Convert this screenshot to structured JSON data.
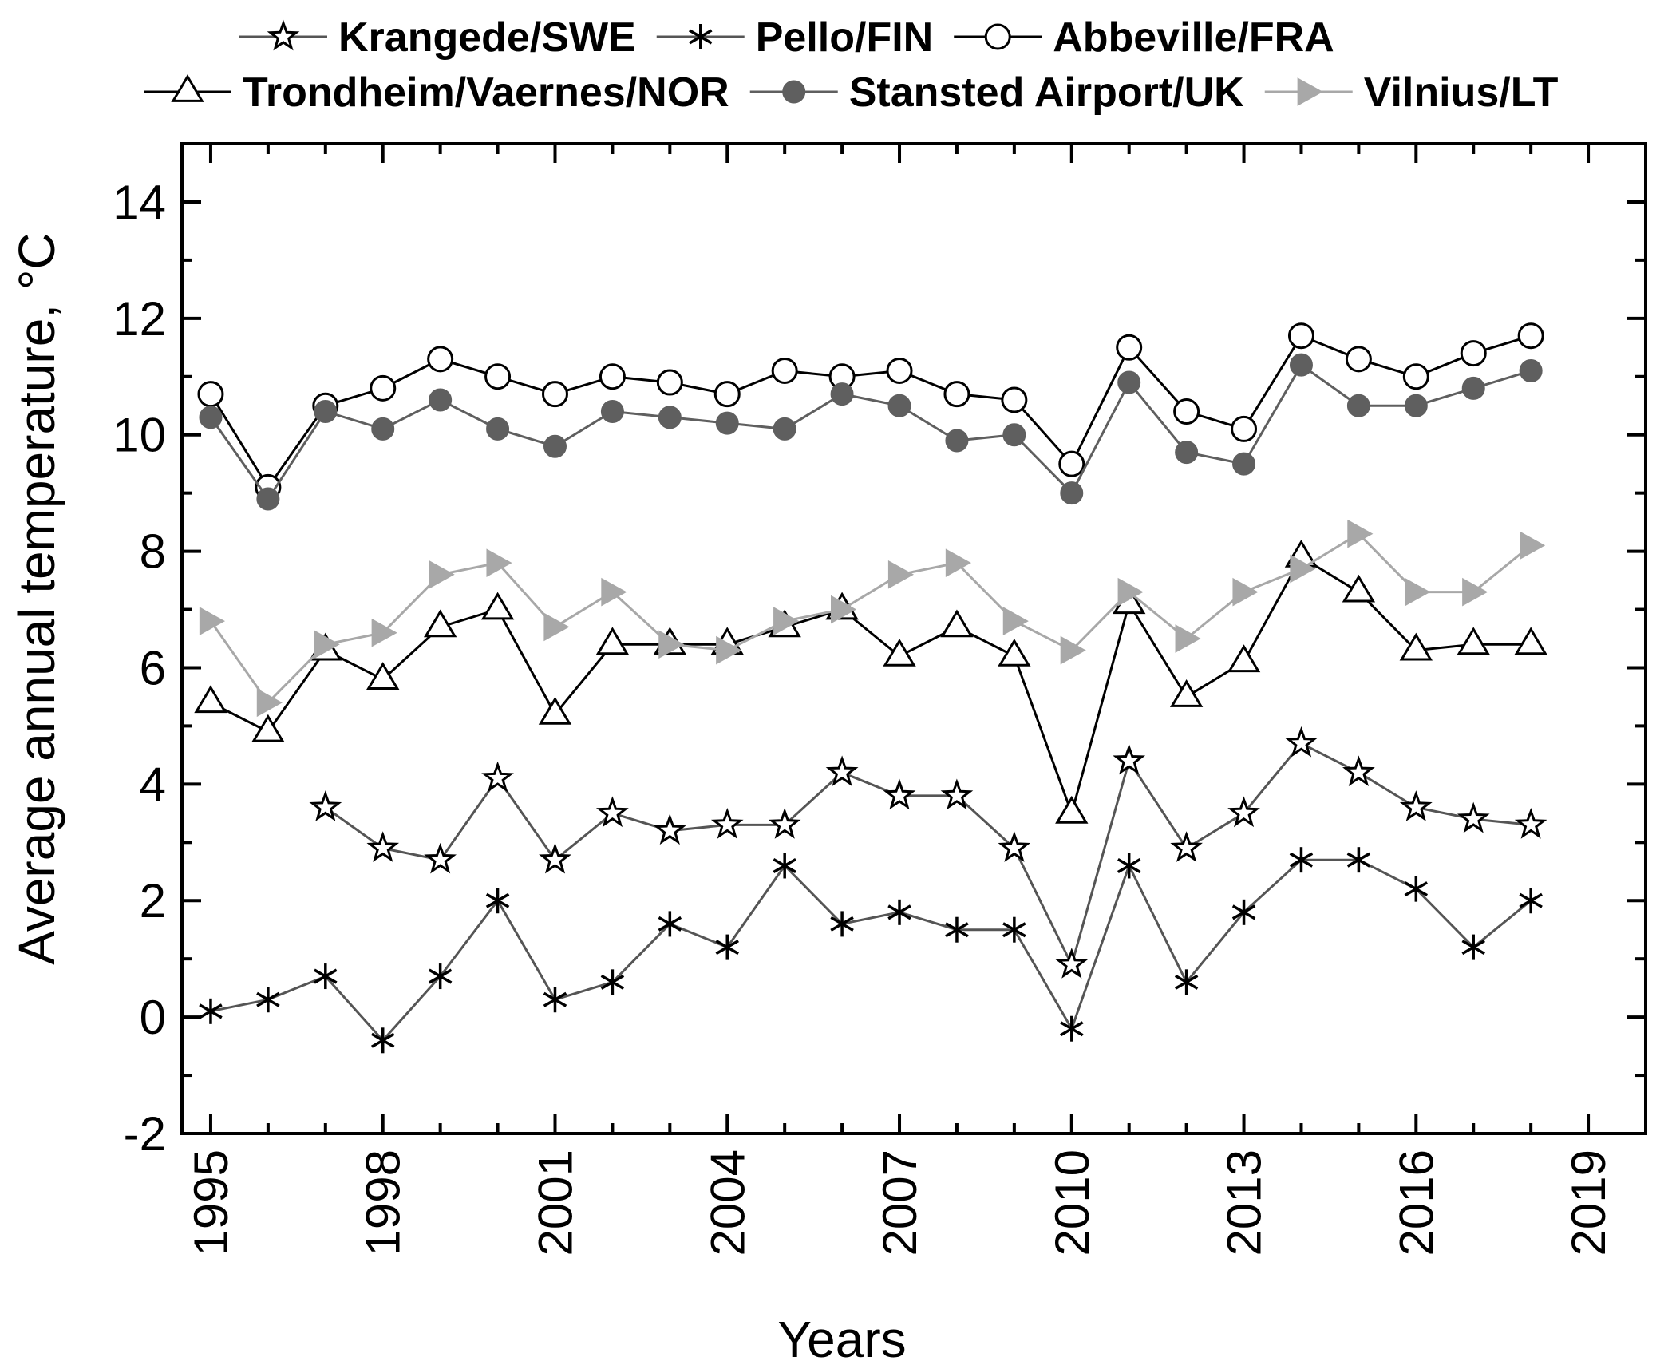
{
  "chart_data": {
    "type": "line",
    "title": "",
    "xlabel": "Years",
    "ylabel": "Average annual temperature, °C",
    "xlim": [
      1994.5,
      2020
    ],
    "ylim": [
      -2,
      15
    ],
    "xticks": [
      "1995",
      "1998",
      "2001",
      "2004",
      "2007",
      "2010",
      "2013",
      "2016",
      "2019"
    ],
    "yticks": [
      "-2",
      "0",
      "2",
      "4",
      "6",
      "8",
      "10",
      "12",
      "14"
    ],
    "legend_position": "top",
    "series": [
      {
        "name": "Krangede/SWE",
        "marker": "star",
        "color": "#555555",
        "x": [
          1997,
          1998,
          1999,
          2000,
          2001,
          2002,
          2003,
          2004,
          2005,
          2006,
          2007,
          2008,
          2009,
          2010,
          2011,
          2012,
          2013,
          2014,
          2015,
          2016,
          2017,
          2018
        ],
        "values": [
          3.6,
          2.9,
          2.7,
          4.1,
          2.7,
          3.5,
          3.2,
          3.3,
          3.3,
          4.2,
          3.8,
          3.8,
          2.9,
          0.9,
          4.4,
          2.9,
          3.5,
          4.7,
          4.2,
          3.6,
          3.4,
          3.3
        ]
      },
      {
        "name": "Pello/FIN",
        "marker": "asterisk",
        "color": "#555555",
        "x": [
          1995,
          1996,
          1997,
          1998,
          1999,
          2000,
          2001,
          2002,
          2003,
          2004,
          2005,
          2006,
          2007,
          2008,
          2009,
          2010,
          2011,
          2012,
          2013,
          2014,
          2015,
          2016,
          2017,
          2018
        ],
        "values": [
          0.1,
          0.3,
          0.7,
          -0.4,
          0.7,
          2.0,
          0.3,
          0.6,
          1.6,
          1.2,
          2.6,
          1.6,
          1.8,
          1.5,
          1.5,
          -0.2,
          2.6,
          0.6,
          1.8,
          2.7,
          2.7,
          2.2,
          1.2,
          2.0
        ]
      },
      {
        "name": "Abbeville/FRA",
        "marker": "open-circle",
        "color": "#000000",
        "x": [
          1995,
          1996,
          1997,
          1998,
          1999,
          2000,
          2001,
          2002,
          2003,
          2004,
          2005,
          2006,
          2007,
          2008,
          2009,
          2010,
          2011,
          2012,
          2013,
          2014,
          2015,
          2016,
          2017,
          2018
        ],
        "values": [
          10.7,
          9.1,
          10.5,
          10.8,
          11.3,
          11.0,
          10.7,
          11.0,
          10.9,
          10.7,
          11.1,
          11.0,
          11.1,
          10.7,
          10.6,
          9.5,
          11.5,
          10.4,
          10.1,
          11.7,
          11.3,
          11.0,
          11.4,
          11.7
        ]
      },
      {
        "name": "Trondheim/Vaernes/NOR",
        "marker": "open-triangle",
        "color": "#000000",
        "x": [
          1995,
          1996,
          1997,
          1998,
          1999,
          2000,
          2001,
          2002,
          2003,
          2004,
          2005,
          2006,
          2007,
          2008,
          2009,
          2010,
          2011,
          2012,
          2013,
          2014,
          2015,
          2016,
          2017,
          2018
        ],
        "values": [
          5.4,
          4.9,
          6.3,
          5.8,
          6.7,
          7.0,
          5.2,
          6.4,
          6.4,
          6.4,
          6.7,
          7.0,
          6.2,
          6.7,
          6.2,
          3.5,
          7.1,
          5.5,
          6.1,
          7.9,
          7.3,
          6.3,
          6.4,
          6.4
        ]
      },
      {
        "name": "Stansted Airport/UK",
        "marker": "filled-circle",
        "color": "#5f5f5f",
        "x": [
          1995,
          1996,
          1997,
          1998,
          1999,
          2000,
          2001,
          2002,
          2003,
          2004,
          2005,
          2006,
          2007,
          2008,
          2009,
          2010,
          2011,
          2012,
          2013,
          2014,
          2015,
          2016,
          2017,
          2018
        ],
        "values": [
          10.3,
          8.9,
          10.4,
          10.1,
          10.6,
          10.1,
          9.8,
          10.4,
          10.3,
          10.2,
          10.1,
          10.7,
          10.5,
          9.9,
          10.0,
          9.0,
          10.9,
          9.7,
          9.5,
          11.2,
          10.5,
          10.5,
          10.8,
          11.1
        ]
      },
      {
        "name": "Vilnius/LT",
        "marker": "filled-right-triangle",
        "color": "#a8a8a8",
        "x": [
          1995,
          1996,
          1997,
          1998,
          1999,
          2000,
          2001,
          2002,
          2003,
          2004,
          2005,
          2006,
          2007,
          2008,
          2009,
          2010,
          2011,
          2012,
          2013,
          2014,
          2015,
          2016,
          2017,
          2018
        ],
        "values": [
          6.8,
          5.4,
          6.4,
          6.6,
          7.6,
          7.8,
          6.7,
          7.3,
          6.4,
          6.3,
          6.8,
          7.0,
          7.6,
          7.8,
          6.8,
          6.3,
          7.3,
          6.5,
          7.3,
          7.7,
          8.3,
          7.3,
          7.3,
          8.1
        ]
      }
    ]
  }
}
